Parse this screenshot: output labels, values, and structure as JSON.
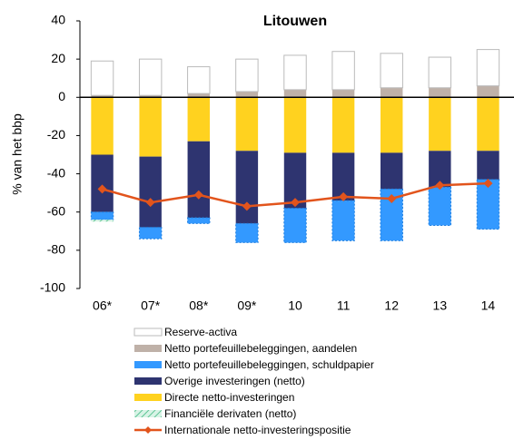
{
  "chart_data": {
    "type": "bar",
    "title": "Litouwen",
    "y_label": "% van het bbp",
    "categories": [
      "06*",
      "07*",
      "08*",
      "09*",
      "10",
      "11",
      "12",
      "13",
      "14"
    ],
    "ylim": [
      -100,
      40
    ],
    "yticks": [
      -100,
      -80,
      -60,
      -40,
      -20,
      0,
      20,
      40
    ],
    "stacked": true,
    "series": [
      {
        "name": "Reserve-activa",
        "color": "#ffffff",
        "values": [
          18,
          19,
          14,
          17,
          18,
          20,
          18,
          16,
          19
        ]
      },
      {
        "name": "Netto portefeuillebeleggingen, aandelen",
        "color": "#bfb1a8",
        "values": [
          1,
          1,
          2,
          3,
          4,
          4,
          5,
          5,
          6
        ]
      },
      {
        "name": "Netto portefeuillebeleggingen, schuldpapier",
        "color": "#3399ff",
        "values": [
          -4,
          -6,
          -3,
          -10,
          -18,
          -21,
          -27,
          -20,
          -26
        ]
      },
      {
        "name": "Overige investeringen (netto)",
        "color": "#2e3470",
        "values": [
          -30,
          -37,
          -40,
          -38,
          -29,
          -25,
          -19,
          -19,
          -15
        ]
      },
      {
        "name": "Directe netto-investeringen",
        "color": "#ffd21f",
        "values": [
          -30,
          -31,
          -23,
          -28,
          -29,
          -29,
          -29,
          -28,
          -28
        ]
      },
      {
        "name": "Financiële derivaten (netto)",
        "color": "#8fd9b8",
        "values": [
          -1,
          0,
          0,
          0,
          0,
          0,
          0,
          0,
          0
        ]
      },
      {
        "name": "Internationale netto-investeringspositie",
        "color": "#e2541c",
        "type": "line",
        "values": [
          -48,
          -55,
          -51,
          -57,
          -55,
          -52,
          -53,
          -46,
          -45
        ]
      }
    ]
  }
}
